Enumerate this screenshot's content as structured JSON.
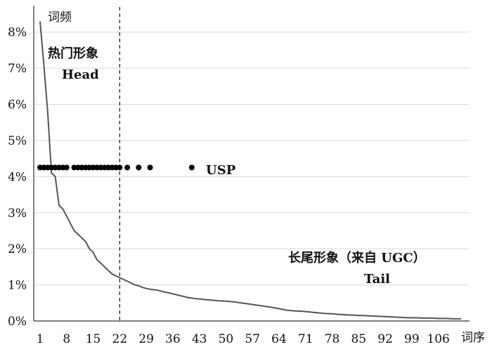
{
  "chart_data": {
    "type": "line",
    "title": "",
    "ylabel": "词频",
    "xlabel": "词序",
    "ylim": [
      0,
      0.085
    ],
    "xlim": [
      1,
      112
    ],
    "grid": "horizontal",
    "y_ticks": [
      {
        "value": 0.0,
        "label": "0%"
      },
      {
        "value": 0.01,
        "label": "1%"
      },
      {
        "value": 0.02,
        "label": "2%"
      },
      {
        "value": 0.03,
        "label": "3%"
      },
      {
        "value": 0.04,
        "label": "4%"
      },
      {
        "value": 0.05,
        "label": "5%"
      },
      {
        "value": 0.06,
        "label": "6%"
      },
      {
        "value": 0.07,
        "label": "7%"
      },
      {
        "value": 0.08,
        "label": "8%"
      }
    ],
    "x_ticks": [
      1,
      8,
      15,
      22,
      29,
      36,
      43,
      50,
      57,
      64,
      71,
      78,
      85,
      92,
      99,
      106
    ],
    "series": [
      {
        "kind": "line",
        "color": "#555555",
        "x": [
          1,
          2,
          3,
          4,
          5,
          6,
          7,
          8,
          9,
          10,
          11,
          12,
          13,
          14,
          15,
          16,
          17,
          18,
          19,
          20,
          21,
          22,
          23,
          24,
          25,
          26,
          27,
          28,
          29,
          30,
          32,
          34,
          36,
          38,
          40,
          42,
          44,
          46,
          48,
          50,
          52,
          54,
          56,
          58,
          60,
          62,
          64,
          66,
          68,
          70,
          72,
          74,
          76,
          78,
          80,
          82,
          84,
          86,
          88,
          90,
          92,
          94,
          96,
          98,
          100,
          102,
          104,
          106,
          108,
          110,
          112
        ],
        "y": [
          0.083,
          0.071,
          0.058,
          0.041,
          0.04,
          0.032,
          0.031,
          0.029,
          0.027,
          0.025,
          0.024,
          0.023,
          0.022,
          0.02,
          0.019,
          0.017,
          0.016,
          0.015,
          0.014,
          0.013,
          0.0125,
          0.012,
          0.0115,
          0.011,
          0.0105,
          0.01,
          0.0098,
          0.0093,
          0.009,
          0.0088,
          0.0085,
          0.008,
          0.0075,
          0.007,
          0.0065,
          0.0062,
          0.006,
          0.0058,
          0.0056,
          0.0055,
          0.0053,
          0.005,
          0.0047,
          0.0044,
          0.0041,
          0.0038,
          0.0034,
          0.003,
          0.0028,
          0.0027,
          0.0025,
          0.0023,
          0.0021,
          0.002,
          0.0018,
          0.0017,
          0.0016,
          0.0015,
          0.0014,
          0.0013,
          0.0012,
          0.0011,
          0.001,
          0.0009,
          0.0009,
          0.0008,
          0.0008,
          0.0007,
          0.0007,
          0.0006,
          0.0006
        ]
      },
      {
        "kind": "scatter",
        "name": "USP",
        "color": "#000000",
        "x": [
          1,
          2,
          3,
          4,
          5,
          6,
          7,
          8,
          10,
          11,
          12,
          13,
          14,
          15,
          16,
          17,
          18,
          19,
          20,
          21,
          22,
          24,
          27,
          30,
          41
        ],
        "y": [
          0.0425,
          0.0425,
          0.0425,
          0.0425,
          0.0425,
          0.0425,
          0.0425,
          0.0425,
          0.0425,
          0.0425,
          0.0425,
          0.0425,
          0.0425,
          0.0425,
          0.0425,
          0.0425,
          0.0425,
          0.0425,
          0.0425,
          0.0425,
          0.0425,
          0.0425,
          0.0425,
          0.0425,
          0.0425
        ]
      }
    ],
    "divider_x": 22,
    "annotations": {
      "head_cn": "热门形象",
      "head_en": "Head",
      "usp": "USP",
      "tail_cn": "长尾形象（来自 UGC）",
      "tail_en": "Tail"
    }
  }
}
